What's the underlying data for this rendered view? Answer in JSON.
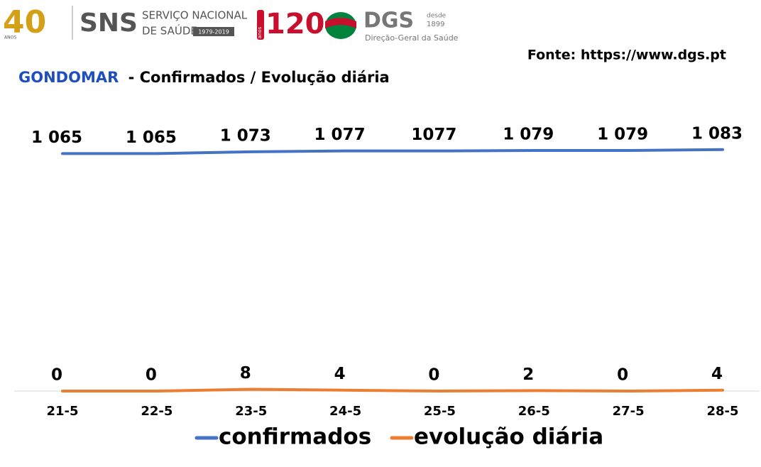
{
  "header": {
    "anniversary": "40",
    "anniversary_unit": "ANOS",
    "sns": "SNS",
    "sns_line1": "SERVIÇO NACIONAL",
    "sns_line2": "DE SAÚDE",
    "sns_years": "1979-2019",
    "dgs_anniversary": "120",
    "dgs_anniversary_unit": "anos",
    "dgs": "DGS",
    "dgs_since": "desde",
    "dgs_year": "1899",
    "dgs_name": "Direção-Geral da Saúde"
  },
  "chart_data": {
    "type": "line",
    "title_place": "GONDOMAR",
    "title": "- Confirmados / Evolução diária",
    "source": "Fonte: https://www.dgs.pt",
    "categories": [
      "21-5",
      "22-5",
      "23-5",
      "24-5",
      "25-5",
      "26-5",
      "27-5",
      "28-5"
    ],
    "series": [
      {
        "name": "confirmados",
        "color": "#4472c4",
        "values": [
          1065,
          1065,
          1073,
          1077,
          1077,
          1079,
          1079,
          1083
        ],
        "value_labels": [
          "1 065",
          "1 065",
          "1 073",
          "1 077",
          "1077",
          "1 079",
          "1 079",
          "1 083"
        ]
      },
      {
        "name": "evolução diária",
        "color": "#ed7d31",
        "values": [
          0,
          0,
          8,
          4,
          0,
          2,
          0,
          4
        ]
      }
    ],
    "ylim": [
      0,
      1200
    ]
  }
}
